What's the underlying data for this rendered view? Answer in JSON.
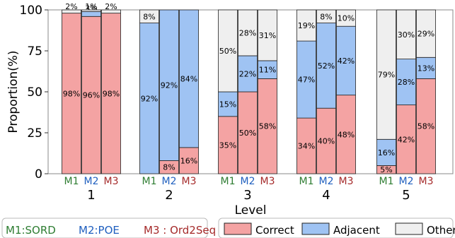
{
  "chart_data": {
    "type": "bar",
    "stacked": true,
    "ylabel": "Proportion(%)",
    "xlabel": "Level",
    "ylim": [
      0,
      100
    ],
    "yticks": [
      0,
      25,
      50,
      75,
      100
    ],
    "grid": false,
    "groups": [
      "1",
      "2",
      "3",
      "4",
      "5"
    ],
    "models": [
      "M1",
      "M2",
      "M3"
    ],
    "model_colors": {
      "M1": "#2e7d32",
      "M2": "#1f5fbf",
      "M3": "#a52a2a"
    },
    "series": [
      {
        "name": "Correct",
        "color": "#f4a3a3",
        "values": [
          [
            98,
            96,
            98
          ],
          [
            0,
            8,
            16
          ],
          [
            35,
            50,
            58
          ],
          [
            34,
            40,
            48
          ],
          [
            5,
            42,
            58
          ]
        ]
      },
      {
        "name": "Adjacent",
        "color": "#9fc3f3",
        "values": [
          [
            0,
            3,
            0
          ],
          [
            92,
            92,
            84
          ],
          [
            15,
            22,
            11
          ],
          [
            47,
            52,
            42
          ],
          [
            16,
            28,
            13
          ]
        ]
      },
      {
        "name": "Other",
        "color": "#efefef",
        "values": [
          [
            2,
            1,
            2
          ],
          [
            8,
            0,
            0
          ],
          [
            50,
            28,
            31
          ],
          [
            19,
            8,
            10
          ],
          [
            79,
            30,
            29
          ]
        ]
      }
    ],
    "value_labels": [
      [
        [
          "98%",
          "",
          "2%"
        ],
        [
          "96%",
          "3%",
          "1%"
        ],
        [
          "98%",
          "",
          "2%"
        ]
      ],
      [
        [
          "",
          "92%",
          "8%"
        ],
        [
          "8%",
          "92%",
          ""
        ],
        [
          "16%",
          "84%",
          ""
        ]
      ],
      [
        [
          "35%",
          "15%",
          "50%"
        ],
        [
          "50%",
          "22%",
          "28%"
        ],
        [
          "58%",
          "11%",
          "31%"
        ]
      ],
      [
        [
          "34%",
          "47%",
          "19%"
        ],
        [
          "40%",
          "52%",
          "8%"
        ],
        [
          "48%",
          "42%",
          "10%"
        ]
      ],
      [
        [
          "5%",
          "16%",
          "79%"
        ],
        [
          "42%",
          "28%",
          "30%"
        ],
        [
          "58%",
          "13%",
          "29%"
        ]
      ]
    ],
    "legend": {
      "models_text": [
        {
          "text": "M1:SORD",
          "model": "M1"
        },
        {
          "text": "M2:POE",
          "model": "M2"
        },
        {
          "text": "M3 : Ord2Seq",
          "model": "M3"
        }
      ],
      "placement": "bottom"
    }
  }
}
